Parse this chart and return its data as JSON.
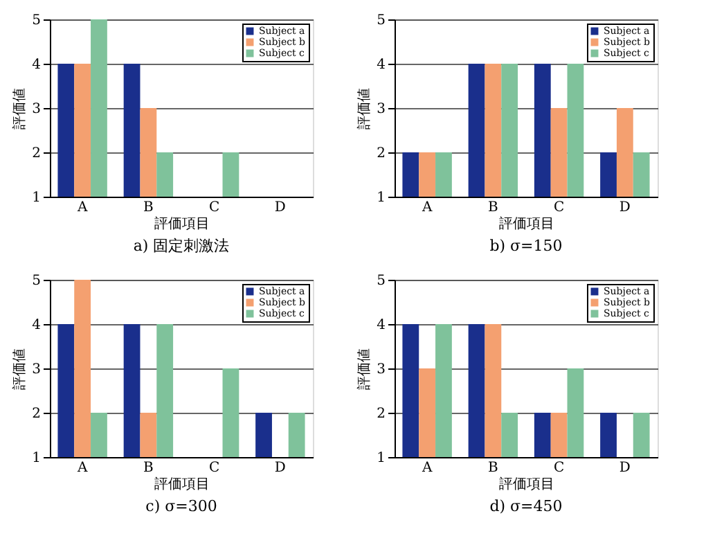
{
  "chart_data": [
    {
      "type": "bar",
      "title": "a) 固定刺激法",
      "xlabel": "評価項目",
      "ylabel": "評価値",
      "categories": [
        "A",
        "B",
        "C",
        "D"
      ],
      "ylim": [
        1,
        5
      ],
      "yticks": [
        1,
        2,
        3,
        4,
        5
      ],
      "grid": "y",
      "legend": "top right",
      "series": [
        {
          "name": "Subject a",
          "color": "#1a2f8c",
          "values": [
            4,
            4,
            null,
            null
          ]
        },
        {
          "name": "Subject b",
          "color": "#f4a070",
          "values": [
            4,
            3,
            null,
            null
          ]
        },
        {
          "name": "Subject c",
          "color": "#7fc29b",
          "values": [
            5,
            2,
            2,
            null
          ]
        }
      ]
    },
    {
      "type": "bar",
      "title": "b) σ=150",
      "xlabel": "評価項目",
      "ylabel": "評価値",
      "categories": [
        "A",
        "B",
        "C",
        "D"
      ],
      "ylim": [
        1,
        5
      ],
      "yticks": [
        1,
        2,
        3,
        4,
        5
      ],
      "grid": "y",
      "legend": "top right",
      "series": [
        {
          "name": "Subject a",
          "color": "#1a2f8c",
          "values": [
            2,
            4,
            4,
            2
          ]
        },
        {
          "name": "Subject b",
          "color": "#f4a070",
          "values": [
            2,
            4,
            3,
            3
          ]
        },
        {
          "name": "Subject c",
          "color": "#7fc29b",
          "values": [
            2,
            4,
            4,
            2
          ]
        }
      ]
    },
    {
      "type": "bar",
      "title": "c) σ=300",
      "xlabel": "評価項目",
      "ylabel": "評価値",
      "categories": [
        "A",
        "B",
        "C",
        "D"
      ],
      "ylim": [
        1,
        5
      ],
      "yticks": [
        1,
        2,
        3,
        4,
        5
      ],
      "grid": "y",
      "legend": "top right",
      "series": [
        {
          "name": "Subject a",
          "color": "#1a2f8c",
          "values": [
            4,
            4,
            null,
            2
          ]
        },
        {
          "name": "Subject b",
          "color": "#f4a070",
          "values": [
            5,
            2,
            null,
            null
          ]
        },
        {
          "name": "Subject c",
          "color": "#7fc29b",
          "values": [
            2,
            4,
            3,
            2
          ]
        }
      ]
    },
    {
      "type": "bar",
      "title": "d) σ=450",
      "xlabel": "評価項目",
      "ylabel": "評価値",
      "categories": [
        "A",
        "B",
        "C",
        "D"
      ],
      "ylim": [
        1,
        5
      ],
      "yticks": [
        1,
        2,
        3,
        4,
        5
      ],
      "grid": "y",
      "legend": "top right",
      "series": [
        {
          "name": "Subject a",
          "color": "#1a2f8c",
          "values": [
            4,
            4,
            2,
            2
          ]
        },
        {
          "name": "Subject b",
          "color": "#f4a070",
          "values": [
            3,
            4,
            2,
            null
          ]
        },
        {
          "name": "Subject c",
          "color": "#7fc29b",
          "values": [
            4,
            2,
            3,
            2
          ]
        }
      ]
    }
  ]
}
